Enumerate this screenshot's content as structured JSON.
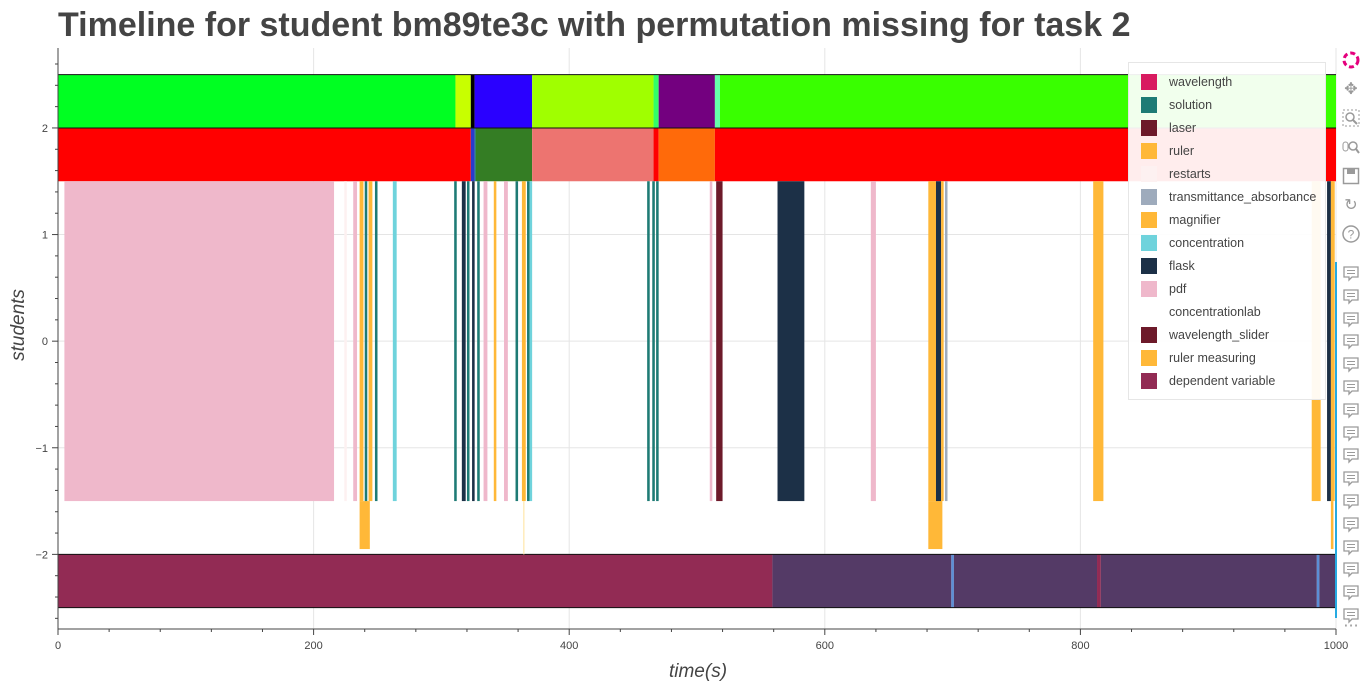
{
  "chart_data": {
    "type": "timeline",
    "title": "Timeline for student bm89te3c with permutation missing for task 2",
    "xlabel": "time(s)",
    "ylabel": "students",
    "xlim": [
      0,
      1000
    ],
    "ylim": [
      -2.7,
      2.75
    ],
    "x_ticks": [
      0,
      200,
      400,
      600,
      800,
      1000
    ],
    "y_ticks": [
      -2,
      -1,
      0,
      1,
      2
    ],
    "y_tick_labels": [
      "−2",
      "−1",
      "0",
      "1",
      "2"
    ],
    "grid": true,
    "legend_position": "top-right",
    "legend": [
      {
        "name": "wavelength",
        "color": "#d81b60"
      },
      {
        "name": "solution",
        "color": "#1e7b75"
      },
      {
        "name": "laser",
        "color": "#6d1a2a"
      },
      {
        "name": "ruler",
        "color": "#ffb838"
      },
      {
        "name": "restarts",
        "color": "#fdf1f1"
      },
      {
        "name": "transmittance_absorbance",
        "color": "#9eabbc"
      },
      {
        "name": "magnifier",
        "color": "#ffb838"
      },
      {
        "name": "concentration",
        "color": "#6fd3dc"
      },
      {
        "name": "flask",
        "color": "#1c3047"
      },
      {
        "name": "pdf",
        "color": "#efb8cb"
      },
      {
        "name": "concentrationlab",
        "color": "#ffffff"
      },
      {
        "name": "wavelength_slider",
        "color": "#6d1a2a"
      },
      {
        "name": "ruler measuring",
        "color": "#ffb838"
      },
      {
        "name": "dependent variable",
        "color": "#922b54"
      }
    ],
    "bands": [
      {
        "y0": 2.0,
        "y1": 2.5,
        "segments": [
          {
            "x0": 0,
            "x1": 311,
            "color": "#00ff22"
          },
          {
            "x0": 311,
            "x1": 323,
            "color": "#c8ff00"
          },
          {
            "x0": 323,
            "x1": 326,
            "color": "#000000"
          },
          {
            "x0": 326,
            "x1": 371,
            "color": "#2a00ff"
          },
          {
            "x0": 371,
            "x1": 466,
            "color": "#a0ff00"
          },
          {
            "x0": 466,
            "x1": 470,
            "color": "#33ff66"
          },
          {
            "x0": 470,
            "x1": 514,
            "color": "#73007f"
          },
          {
            "x0": 514,
            "x1": 518,
            "color": "#66ffaa"
          },
          {
            "x0": 518,
            "x1": 1000,
            "color": "#39ff00"
          }
        ]
      },
      {
        "y0": 1.5,
        "y1": 2.0,
        "segments": [
          {
            "x0": 0,
            "x1": 323,
            "color": "#ff0000"
          },
          {
            "x0": 323,
            "x1": 326,
            "color": "#2a3acc"
          },
          {
            "x0": 326,
            "x1": 327,
            "color": "#1e7b75"
          },
          {
            "x0": 327,
            "x1": 371,
            "color": "#347d24"
          },
          {
            "x0": 371,
            "x1": 466,
            "color": "#ed7470"
          },
          {
            "x0": 466,
            "x1": 470,
            "color": "#ff0000"
          },
          {
            "x0": 470,
            "x1": 514,
            "color": "#ff6a0a"
          },
          {
            "x0": 514,
            "x1": 1000,
            "color": "#ff0000"
          }
        ]
      },
      {
        "y0": -2.5,
        "y1": -2.0,
        "segments": [
          {
            "x0": 0,
            "x1": 559,
            "color": "#922b54"
          },
          {
            "x0": 559,
            "x1": 699,
            "color": "#543a66"
          },
          {
            "x0": 699,
            "x1": 701,
            "color": "#5b8ed6"
          },
          {
            "x0": 701,
            "x1": 813,
            "color": "#543a66"
          },
          {
            "x0": 813,
            "x1": 816,
            "color": "#922b54"
          },
          {
            "x0": 816,
            "x1": 985,
            "color": "#543a66"
          },
          {
            "x0": 985,
            "x1": 987,
            "color": "#5b8ed6"
          },
          {
            "x0": 987,
            "x1": 1000,
            "color": "#543a66"
          }
        ]
      }
    ],
    "events": [
      {
        "x0": 5,
        "x1": 216,
        "y0": -1.5,
        "y1": 1.5,
        "color": "#efb8cb"
      },
      {
        "x0": 224,
        "x1": 226,
        "y0": -1.5,
        "y1": 1.5,
        "color": "#fdf1f1"
      },
      {
        "x0": 231,
        "x1": 234,
        "y0": -1.5,
        "y1": 1.5,
        "color": "#efb8cb"
      },
      {
        "x0": 236,
        "x1": 239,
        "y0": -1.5,
        "y1": 1.5,
        "color": "#ffb838"
      },
      {
        "x0": 236,
        "x1": 244,
        "y0": -1.95,
        "y1": -1.5,
        "color": "#ffb838"
      },
      {
        "x0": 240,
        "x1": 242,
        "y0": -1.5,
        "y1": 1.5,
        "color": "#1e7b75"
      },
      {
        "x0": 243,
        "x1": 246,
        "y0": -1.5,
        "y1": 1.5,
        "color": "#ffb838"
      },
      {
        "x0": 248,
        "x1": 250,
        "y0": -1.5,
        "y1": 1.5,
        "color": "#1e7b75"
      },
      {
        "x0": 262,
        "x1": 265,
        "y0": -1.5,
        "y1": 1.5,
        "color": "#6fd3dc"
      },
      {
        "x0": 310,
        "x1": 312,
        "y0": -1.5,
        "y1": 1.5,
        "color": "#1e7b75"
      },
      {
        "x0": 316,
        "x1": 319,
        "y0": -1.5,
        "y1": 1.5,
        "color": "#1c3047"
      },
      {
        "x0": 320,
        "x1": 322,
        "y0": -1.5,
        "y1": 1.5,
        "color": "#1e7b75"
      },
      {
        "x0": 324,
        "x1": 326,
        "y0": -1.5,
        "y1": 1.5,
        "color": "#1c3047"
      },
      {
        "x0": 328,
        "x1": 330,
        "y0": -1.5,
        "y1": 1.5,
        "color": "#1e7b75"
      },
      {
        "x0": 333,
        "x1": 336,
        "y0": -1.5,
        "y1": 1.5,
        "color": "#efb8cb"
      },
      {
        "x0": 341,
        "x1": 343,
        "y0": -1.5,
        "y1": 1.5,
        "color": "#ffb838"
      },
      {
        "x0": 349,
        "x1": 352,
        "y0": -1.5,
        "y1": 1.5,
        "color": "#efb8cb"
      },
      {
        "x0": 358,
        "x1": 360,
        "y0": -1.5,
        "y1": 1.5,
        "color": "#1e7b75"
      },
      {
        "x0": 363,
        "x1": 366,
        "y0": -1.5,
        "y1": 1.5,
        "color": "#ffb838"
      },
      {
        "x0": 364,
        "x1": 365,
        "y0": -2.0,
        "y1": -1.5,
        "color": "#ffe9b0"
      },
      {
        "x0": 367,
        "x1": 369,
        "y0": -1.5,
        "y1": 1.5,
        "color": "#1e7b75"
      },
      {
        "x0": 369,
        "x1": 371,
        "y0": -1.5,
        "y1": 1.5,
        "color": "#6fd3dc"
      },
      {
        "x0": 461,
        "x1": 463,
        "y0": -1.5,
        "y1": 1.5,
        "color": "#1e7b75"
      },
      {
        "x0": 465,
        "x1": 467,
        "y0": -1.5,
        "y1": 1.5,
        "color": "#1e7b75"
      },
      {
        "x0": 468,
        "x1": 470,
        "y0": -1.5,
        "y1": 1.5,
        "color": "#1e7b75"
      },
      {
        "x0": 510,
        "x1": 512,
        "y0": -1.5,
        "y1": 1.5,
        "color": "#efb8cb"
      },
      {
        "x0": 515,
        "x1": 520,
        "y0": -1.5,
        "y1": 1.5,
        "color": "#6d1a2a"
      },
      {
        "x0": 563,
        "x1": 584,
        "y0": -1.5,
        "y1": 1.5,
        "color": "#1c3047"
      },
      {
        "x0": 636,
        "x1": 640,
        "y0": -1.5,
        "y1": 1.5,
        "color": "#efb8cb"
      },
      {
        "x0": 681,
        "x1": 687,
        "y0": -1.5,
        "y1": 1.5,
        "color": "#ffb838"
      },
      {
        "x0": 681,
        "x1": 692,
        "y0": -1.95,
        "y1": -1.5,
        "color": "#ffb838"
      },
      {
        "x0": 687,
        "x1": 691,
        "y0": -1.5,
        "y1": 1.5,
        "color": "#1c3047"
      },
      {
        "x0": 691,
        "x1": 693,
        "y0": -1.5,
        "y1": 1.5,
        "color": "#ffb838"
      },
      {
        "x0": 694,
        "x1": 696,
        "y0": -1.5,
        "y1": 1.5,
        "color": "#9eabbc"
      },
      {
        "x0": 810,
        "x1": 818,
        "y0": -1.5,
        "y1": 1.5,
        "color": "#ffb838"
      },
      {
        "x0": 981,
        "x1": 988,
        "y0": -1.5,
        "y1": 1.5,
        "color": "#ffb838"
      },
      {
        "x0": 993,
        "x1": 996,
        "y0": -1.5,
        "y1": 1.5,
        "color": "#1c3047"
      },
      {
        "x0": 996,
        "x1": 999,
        "y0": -1.5,
        "y1": 1.5,
        "color": "#ffb838"
      },
      {
        "x0": 996,
        "x1": 998,
        "y0": -1.95,
        "y1": -1.5,
        "color": "#ffb838"
      }
    ]
  },
  "toolbar": {
    "tools": [
      {
        "icon": "bokeh-logo-icon",
        "color": "#e5007d",
        "glyph": ""
      },
      {
        "icon": "pan-icon",
        "color": "#9a9a9a",
        "glyph": "✥"
      },
      {
        "icon": "box-zoom-icon",
        "color": "#9a9a9a",
        "glyph": ""
      },
      {
        "icon": "wheel-zoom-icon",
        "color": "#9a9a9a",
        "glyph": ""
      },
      {
        "icon": "save-icon",
        "color": "#9a9a9a",
        "glyph": ""
      },
      {
        "icon": "reset-icon",
        "color": "#9a9a9a",
        "glyph": "↻"
      },
      {
        "icon": "help-icon",
        "color": "#9a9a9a",
        "glyph": "?"
      },
      {
        "icon": "hover-icon",
        "color": "#9a9a9a",
        "glyph": ""
      },
      {
        "icon": "more-tools-icon",
        "color": "#9a9a9a",
        "glyph": "···"
      }
    ],
    "hover_count": 16
  }
}
